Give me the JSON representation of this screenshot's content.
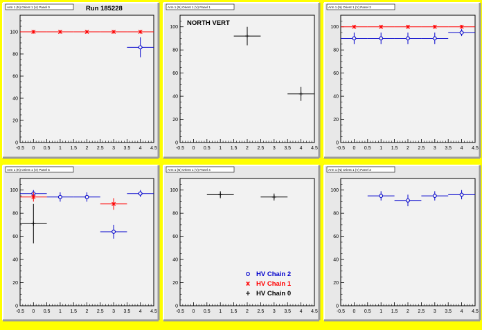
{
  "run_label": "Run 185228",
  "legend": {
    "entries": [
      {
        "label": "HV Chain 2",
        "color": "#0000cc",
        "marker": "circle"
      },
      {
        "label": "HV Chain 1",
        "color": "#ff0000",
        "marker": "star"
      },
      {
        "label": "HV Chain 0",
        "color": "#000000",
        "marker": "plus"
      }
    ]
  },
  "chart_data": [
    {
      "type": "scatter",
      "title": "Arm 1 (N) Orient 1 (V) Panel 0",
      "annotation": "Run 185228",
      "xlim": [
        -0.5,
        4.5
      ],
      "ylim": [
        0,
        115
      ],
      "xticks": [
        -0.5,
        0,
        0.5,
        1,
        1.5,
        2,
        2.5,
        3,
        3.5,
        4,
        4.5
      ],
      "yticks": [
        0,
        20,
        40,
        60,
        80,
        100
      ],
      "series": [
        {
          "name": "HV Chain 1",
          "color": "#ff0000",
          "marker": "star",
          "points": [
            {
              "x": 0,
              "y": 100,
              "xerr": 0.5,
              "yerr": 0
            },
            {
              "x": 1,
              "y": 100,
              "xerr": 0.5,
              "yerr": 0
            },
            {
              "x": 2,
              "y": 100,
              "xerr": 0.5,
              "yerr": 0
            },
            {
              "x": 3,
              "y": 100,
              "xerr": 0.5,
              "yerr": 0
            },
            {
              "x": 4,
              "y": 100,
              "xerr": 0.5,
              "yerr": 0
            }
          ]
        },
        {
          "name": "HV Chain 2",
          "color": "#0000cc",
          "marker": "circle",
          "points": [
            {
              "x": 4,
              "y": 86,
              "xerr": 0.5,
              "yerr": 9
            }
          ]
        }
      ]
    },
    {
      "type": "scatter",
      "title": "Arm 1 (N) Orient 1 (V) Panel 1",
      "annotation": "NORTH VERT",
      "xlim": [
        -0.5,
        4.5
      ],
      "ylim": [
        0,
        110
      ],
      "xticks": [
        -0.5,
        0,
        0.5,
        1,
        1.5,
        2,
        2.5,
        3,
        3.5,
        4,
        4.5
      ],
      "yticks": [
        0,
        20,
        40,
        60,
        80,
        100
      ],
      "series": [
        {
          "name": "HV Chain 0",
          "color": "#000000",
          "marker": "plus",
          "points": [
            {
              "x": 2,
              "y": 92,
              "xerr": 0.5,
              "yerr": 8
            },
            {
              "x": 4,
              "y": 42,
              "xerr": 0.5,
              "yerr": 6
            }
          ]
        }
      ]
    },
    {
      "type": "scatter",
      "title": "Arm 1 (N) Orient 1 (V) Panel 2",
      "xlim": [
        -0.5,
        4.5
      ],
      "ylim": [
        0,
        110
      ],
      "xticks": [
        -0.5,
        0,
        0.5,
        1,
        1.5,
        2,
        2.5,
        3,
        3.5,
        4,
        4.5
      ],
      "yticks": [
        0,
        20,
        40,
        60,
        80,
        100
      ],
      "series": [
        {
          "name": "HV Chain 1",
          "color": "#ff0000",
          "marker": "star",
          "points": [
            {
              "x": 0,
              "y": 100,
              "xerr": 0.5,
              "yerr": 0
            },
            {
              "x": 1,
              "y": 100,
              "xerr": 0.5,
              "yerr": 0
            },
            {
              "x": 2,
              "y": 100,
              "xerr": 0.5,
              "yerr": 0
            },
            {
              "x": 3,
              "y": 100,
              "xerr": 0.5,
              "yerr": 0
            },
            {
              "x": 4,
              "y": 100,
              "xerr": 0.5,
              "yerr": 0
            }
          ]
        },
        {
          "name": "HV Chain 2",
          "color": "#0000cc",
          "marker": "circle",
          "points": [
            {
              "x": 0,
              "y": 90,
              "xerr": 0.5,
              "yerr": 5
            },
            {
              "x": 1,
              "y": 90,
              "xerr": 0.5,
              "yerr": 5
            },
            {
              "x": 2,
              "y": 90,
              "xerr": 0.5,
              "yerr": 5
            },
            {
              "x": 3,
              "y": 90,
              "xerr": 0.5,
              "yerr": 5
            },
            {
              "x": 4,
              "y": 95,
              "xerr": 0.5,
              "yerr": 3
            }
          ]
        }
      ]
    },
    {
      "type": "scatter",
      "title": "Arm 1 (N) Orient 1 (V) Panel 5",
      "xlim": [
        -0.5,
        4.5
      ],
      "ylim": [
        0,
        110
      ],
      "xticks": [
        -0.5,
        0,
        0.5,
        1,
        1.5,
        2,
        2.5,
        3,
        3.5,
        4,
        4.5
      ],
      "yticks": [
        0,
        20,
        40,
        60,
        80,
        100
      ],
      "series": [
        {
          "name": "HV Chain 2",
          "color": "#0000cc",
          "marker": "circle",
          "points": [
            {
              "x": 0,
              "y": 97,
              "xerr": 0.5,
              "yerr": 3
            },
            {
              "x": 1,
              "y": 94,
              "xerr": 0.5,
              "yerr": 4
            },
            {
              "x": 2,
              "y": 94,
              "xerr": 0.5,
              "yerr": 4
            },
            {
              "x": 3,
              "y": 64,
              "xerr": 0.5,
              "yerr": 6
            },
            {
              "x": 4,
              "y": 97,
              "xerr": 0.5,
              "yerr": 3
            }
          ]
        },
        {
          "name": "HV Chain 1",
          "color": "#ff0000",
          "marker": "star",
          "points": [
            {
              "x": 0,
              "y": 94,
              "xerr": 0.5,
              "yerr": 4
            },
            {
              "x": 3,
              "y": 88,
              "xerr": 0.5,
              "yerr": 5
            }
          ]
        },
        {
          "name": "HV Chain 0",
          "color": "#000000",
          "marker": "plus",
          "points": [
            {
              "x": 0,
              "y": 71,
              "xerr": 0.5,
              "yerr": 17
            }
          ]
        }
      ]
    },
    {
      "type": "scatter",
      "title": "Arm 1 (N) Orient 1 (V) Panel 4",
      "xlim": [
        -0.5,
        4.5
      ],
      "ylim": [
        0,
        110
      ],
      "xticks": [
        -0.5,
        0,
        0.5,
        1,
        1.5,
        2,
        2.5,
        3,
        3.5,
        4,
        4.5
      ],
      "yticks": [
        0,
        20,
        40,
        60,
        80,
        100
      ],
      "legend_position": "bottom-right",
      "series": [
        {
          "name": "HV Chain 0",
          "color": "#000000",
          "marker": "plus",
          "points": [
            {
              "x": 1,
              "y": 96,
              "xerr": 0.5,
              "yerr": 3
            },
            {
              "x": 3,
              "y": 94,
              "xerr": 0.5,
              "yerr": 3
            }
          ]
        }
      ]
    },
    {
      "type": "scatter",
      "title": "Arm 1 (N) Orient 1 (V) Panel 3",
      "xlim": [
        -0.5,
        4.5
      ],
      "ylim": [
        0,
        110
      ],
      "xticks": [
        -0.5,
        0,
        0.5,
        1,
        1.5,
        2,
        2.5,
        3,
        3.5,
        4,
        4.5
      ],
      "yticks": [
        0,
        20,
        40,
        60,
        80,
        100
      ],
      "series": [
        {
          "name": "HV Chain 2",
          "color": "#0000cc",
          "marker": "circle",
          "points": [
            {
              "x": 1,
              "y": 95,
              "xerr": 0.5,
              "yerr": 4
            },
            {
              "x": 2,
              "y": 91,
              "xerr": 0.5,
              "yerr": 5
            },
            {
              "x": 3,
              "y": 95,
              "xerr": 0.5,
              "yerr": 4
            },
            {
              "x": 4,
              "y": 96,
              "xerr": 0.5,
              "yerr": 4
            }
          ]
        }
      ]
    }
  ]
}
